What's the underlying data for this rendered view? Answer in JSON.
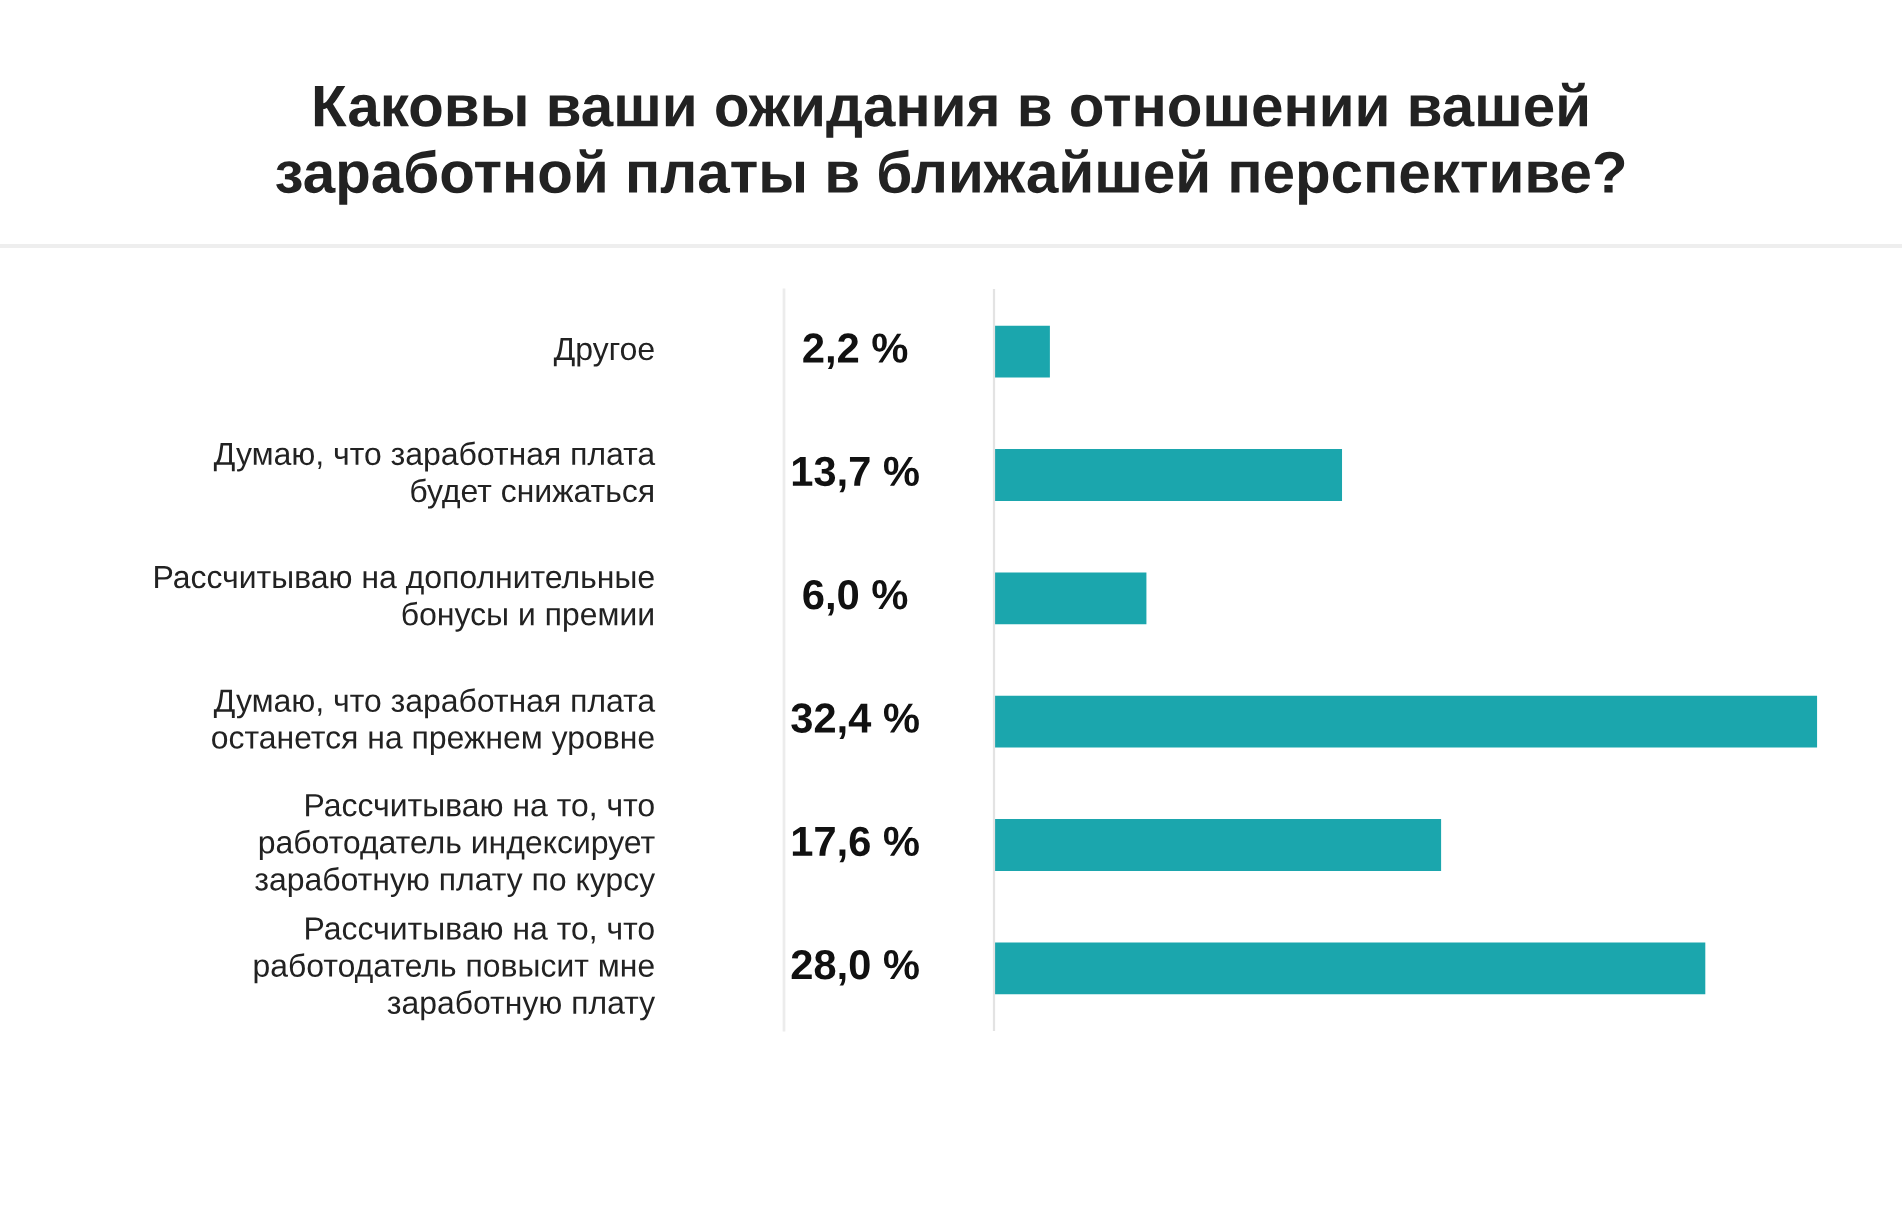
{
  "chart_data": {
    "type": "bar",
    "orientation": "horizontal",
    "title": "Каковы ваши ожидания в отношении вашей\nзаработной платы в ближайшей перспективе?",
    "categories": [
      "Другое",
      "Думаю, что заработная плата\nбудет снижаться",
      "Рассчитываю на дополнительные\nбонусы и премии",
      "Думаю, что заработная плата\nостанется на прежнем уровне",
      "Рассчитываю на то, что\nработодатель индексирует\nзаработную плату по курсу",
      "Рассчитываю на то, что\nработодатель повысит мне\nзаработную плату"
    ],
    "values": [
      2.2,
      13.7,
      6.0,
      32.4,
      17.6,
      28.0
    ],
    "value_labels": [
      "2,2 %",
      "13,7 %",
      "6,0 %",
      "32,4 %",
      "17,6 %",
      "28,0 %"
    ],
    "color": "#1ba6ad"
  }
}
